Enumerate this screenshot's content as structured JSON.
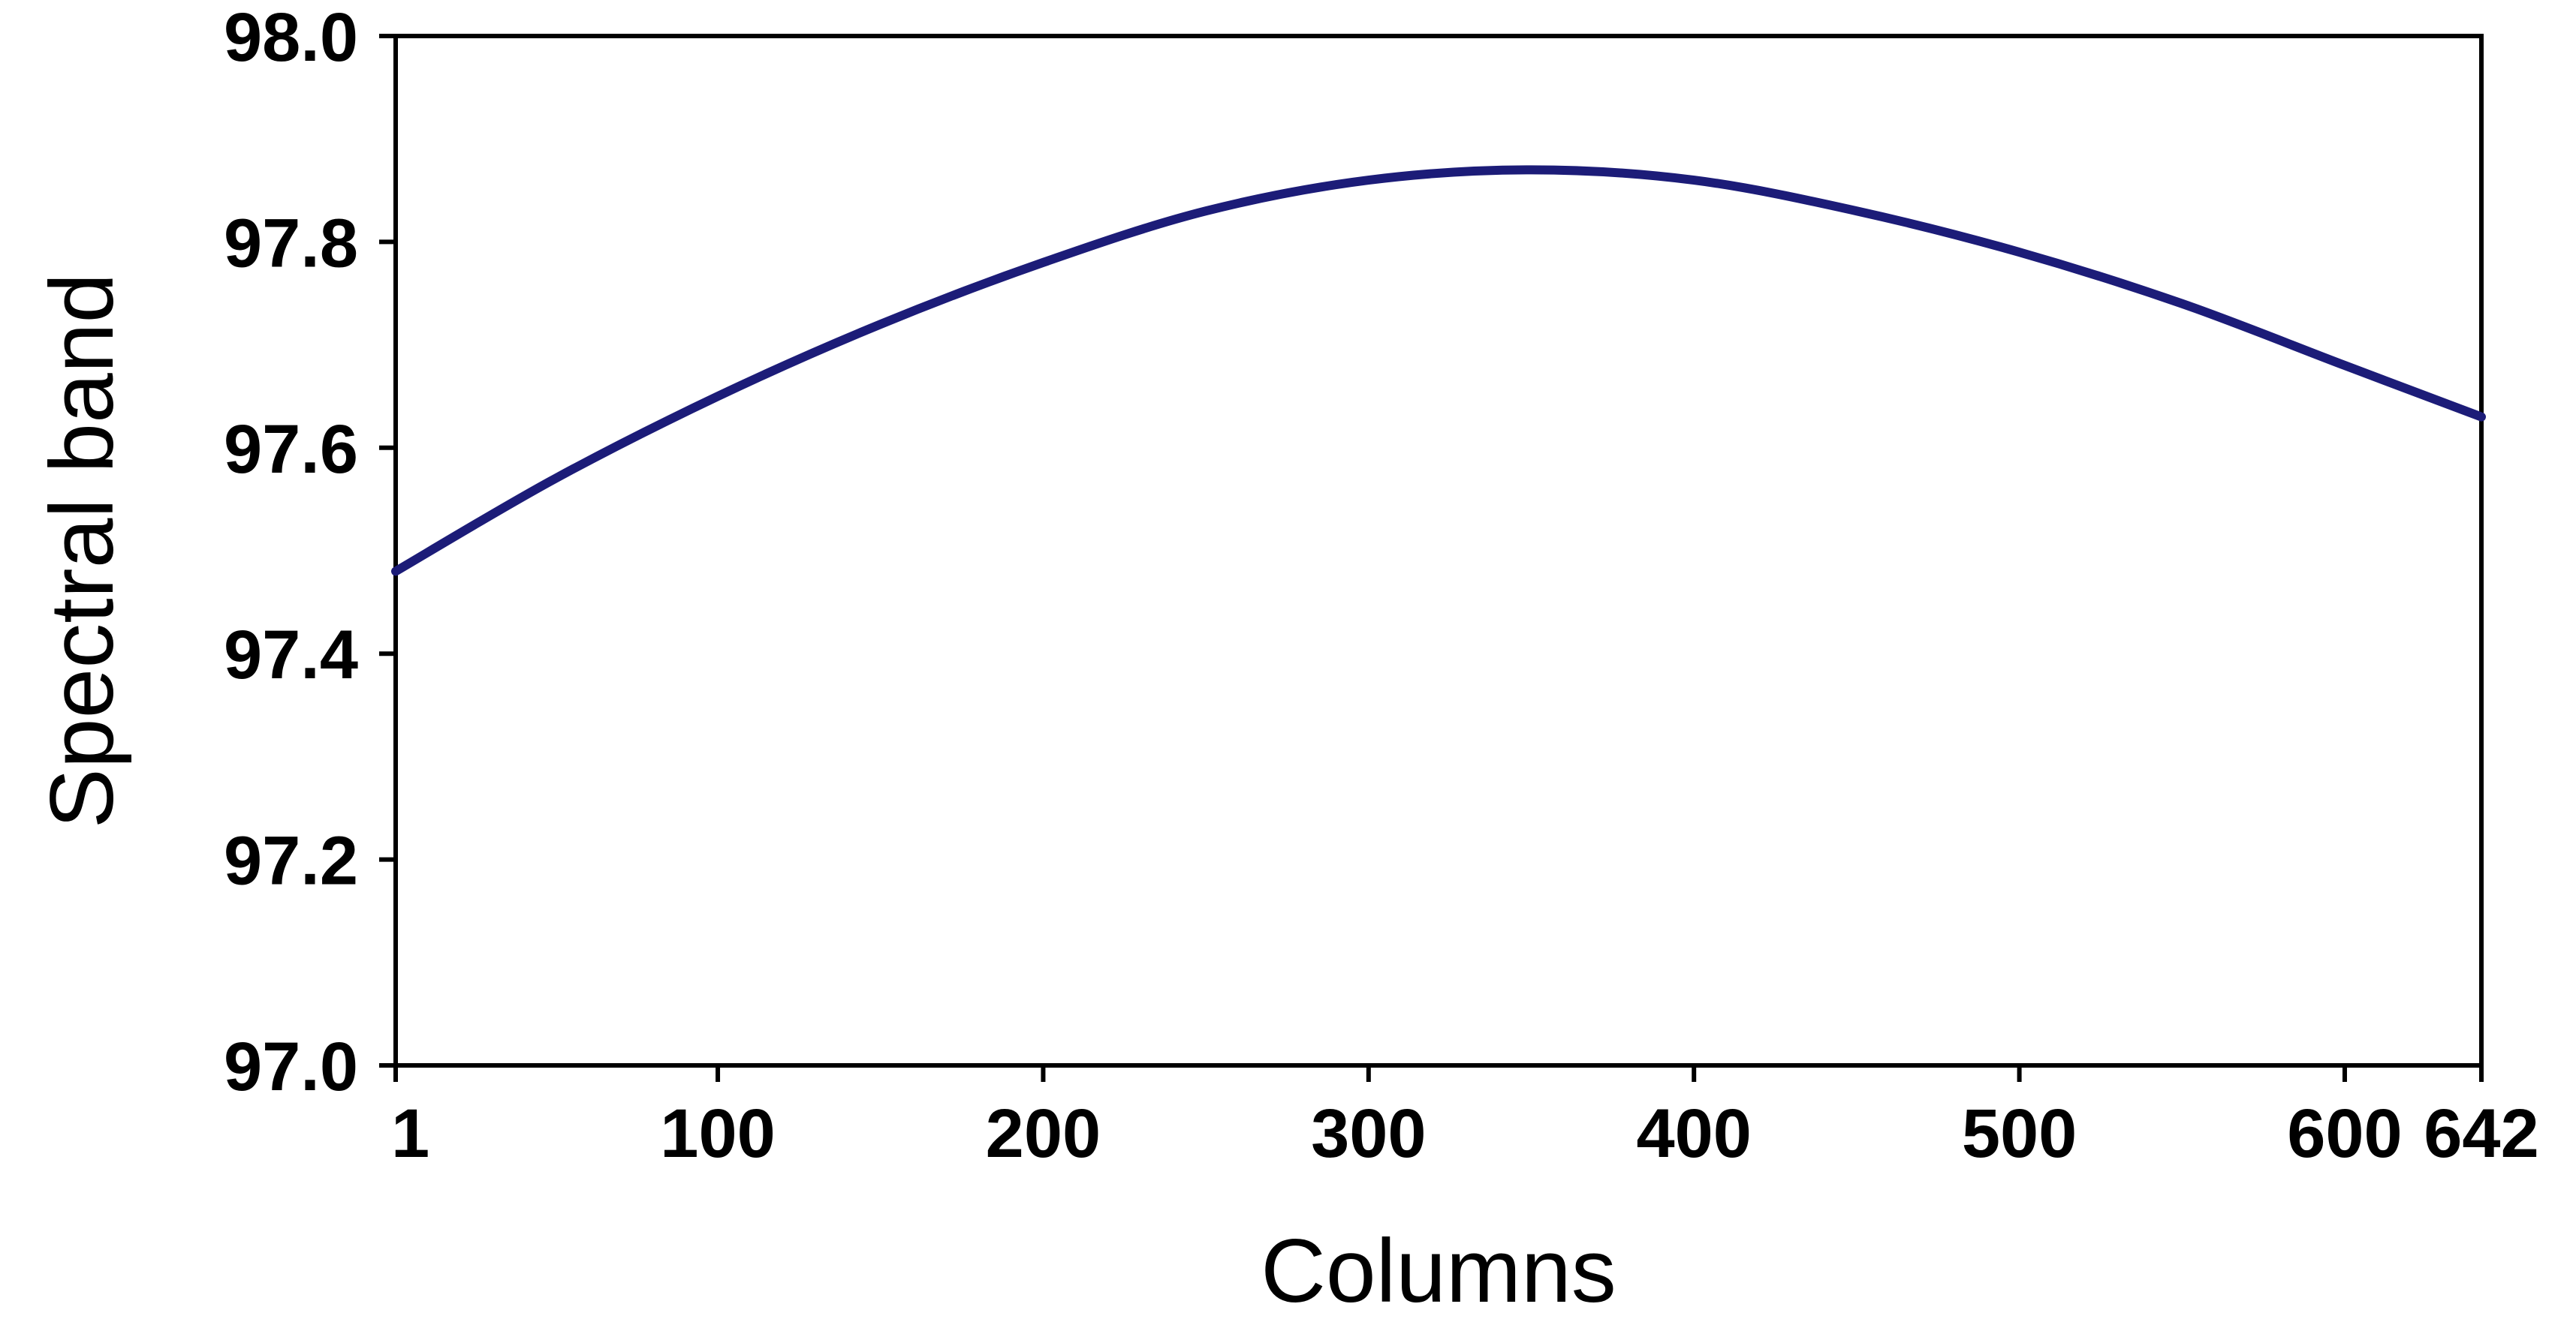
{
  "chart_data": {
    "type": "line",
    "title": "",
    "xlabel": "Columns",
    "ylabel": "Spectral band",
    "xlim": [
      1,
      642
    ],
    "ylim": [
      97.0,
      98.0
    ],
    "x_ticks": [
      1,
      100,
      200,
      300,
      400,
      500,
      600,
      642
    ],
    "y_ticks": [
      "97.0",
      "97.2",
      "97.4",
      "97.6",
      "97.8",
      "98.0"
    ],
    "grid": false,
    "legend": "none",
    "series": [
      {
        "color": "#1c1c78",
        "x": [
          1,
          50,
          100,
          150,
          200,
          250,
          300,
          350,
          400,
          450,
          500,
          550,
          600,
          642
        ],
        "y": [
          97.48,
          97.57,
          97.65,
          97.72,
          97.78,
          97.83,
          97.86,
          97.87,
          97.86,
          97.83,
          97.79,
          97.74,
          97.68,
          97.63
        ]
      }
    ]
  }
}
